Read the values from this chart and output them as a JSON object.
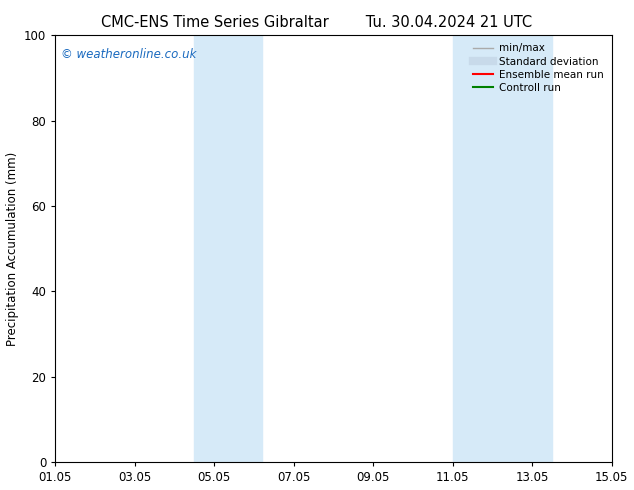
{
  "title_left": "CMC-ENS Time Series Gibraltar",
  "title_right": "Tu. 30.04.2024 21 UTC",
  "ylabel": "Precipitation Accumulation (mm)",
  "xlabel": "",
  "ylim": [
    0,
    100
  ],
  "xlim": [
    0,
    14
  ],
  "x_tick_labels": [
    "01.05",
    "03.05",
    "05.05",
    "07.05",
    "09.05",
    "11.05",
    "13.05",
    "15.05"
  ],
  "x_tick_positions": [
    0,
    2,
    4,
    6,
    8,
    10,
    12,
    14
  ],
  "y_tick_positions": [
    0,
    20,
    40,
    60,
    80,
    100
  ],
  "shaded_bands": [
    {
      "x_start": 3.5,
      "x_end": 5.2
    },
    {
      "x_start": 10.0,
      "x_end": 12.5
    }
  ],
  "band_color": "#d6eaf8",
  "background_color": "#ffffff",
  "watermark_text": "© weatheronline.co.uk",
  "watermark_color": "#1a6abf",
  "legend_entries": [
    {
      "label": "min/max",
      "color": "#aaaaaa",
      "linestyle": "-",
      "linewidth": 1.0
    },
    {
      "label": "Standard deviation",
      "color": "#c8daea",
      "linestyle": "-",
      "linewidth": 6
    },
    {
      "label": "Ensemble mean run",
      "color": "#ff0000",
      "linestyle": "-",
      "linewidth": 1.5
    },
    {
      "label": "Controll run",
      "color": "#008000",
      "linestyle": "-",
      "linewidth": 1.5
    }
  ],
  "title_fontsize": 10.5,
  "ylabel_fontsize": 8.5,
  "tick_fontsize": 8.5,
  "legend_fontsize": 7.5,
  "watermark_fontsize": 8.5
}
